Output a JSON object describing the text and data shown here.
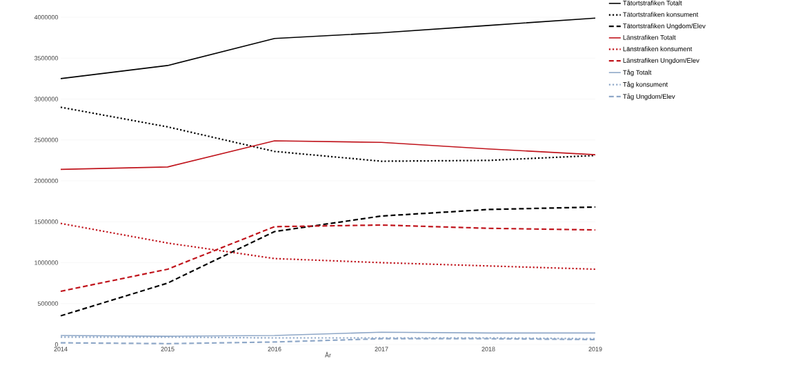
{
  "chart_data": {
    "type": "line",
    "xlabel": "År",
    "x": [
      2014,
      2015,
      2016,
      2017,
      2018,
      2019
    ],
    "xlim": [
      2014,
      2019
    ],
    "xticks": [
      2014,
      2015,
      2016,
      2017,
      2018,
      2019
    ],
    "ylim": [
      0,
      4000000
    ],
    "yticks": [
      0,
      500000,
      1000000,
      1500000,
      2000000,
      2500000,
      3000000,
      3500000,
      4000000
    ],
    "grid": "y",
    "legend": "top right",
    "marker": "none",
    "series": [
      {
        "name": "Tätortstrafiken Totalt",
        "color": "#000000",
        "line_style": "solid",
        "values": [
          3250000,
          3410000,
          3740000,
          3810000,
          3900000,
          3990000
        ]
      },
      {
        "name": "Tätortstrafiken konsument",
        "color": "#000000",
        "line_style": "dotted",
        "values": [
          2900000,
          2660000,
          2360000,
          2240000,
          2250000,
          2310000
        ]
      },
      {
        "name": "Tätortstrafiken Ungdom/Elev",
        "color": "#000000",
        "line_style": "dashed",
        "values": [
          350000,
          750000,
          1380000,
          1570000,
          1650000,
          1680000
        ]
      },
      {
        "name": "Länstrafiken Totalt",
        "color": "#c0141c",
        "line_style": "solid",
        "values": [
          2140000,
          2170000,
          2490000,
          2470000,
          2390000,
          2320000
        ]
      },
      {
        "name": "Länstrafiken konsument",
        "color": "#c0141c",
        "line_style": "dotted",
        "values": [
          1480000,
          1240000,
          1050000,
          1000000,
          960000,
          920000
        ]
      },
      {
        "name": "Länstrafiken Ungdom/Elev",
        "color": "#c0141c",
        "line_style": "dashed",
        "values": [
          650000,
          920000,
          1440000,
          1460000,
          1420000,
          1400000
        ]
      },
      {
        "name": "Tåg Totalt",
        "color": "#8fa8c8",
        "line_style": "solid",
        "values": [
          110000,
          100000,
          110000,
          150000,
          140000,
          140000
        ]
      },
      {
        "name": "Tåg konsument",
        "color": "#8fa8c8",
        "line_style": "dotted",
        "values": [
          90000,
          90000,
          80000,
          80000,
          80000,
          70000
        ]
      },
      {
        "name": "Tåg Ungdom/Elev",
        "color": "#8fa8c8",
        "line_style": "dashed",
        "values": [
          20000,
          10000,
          30000,
          70000,
          70000,
          60000
        ]
      }
    ]
  }
}
